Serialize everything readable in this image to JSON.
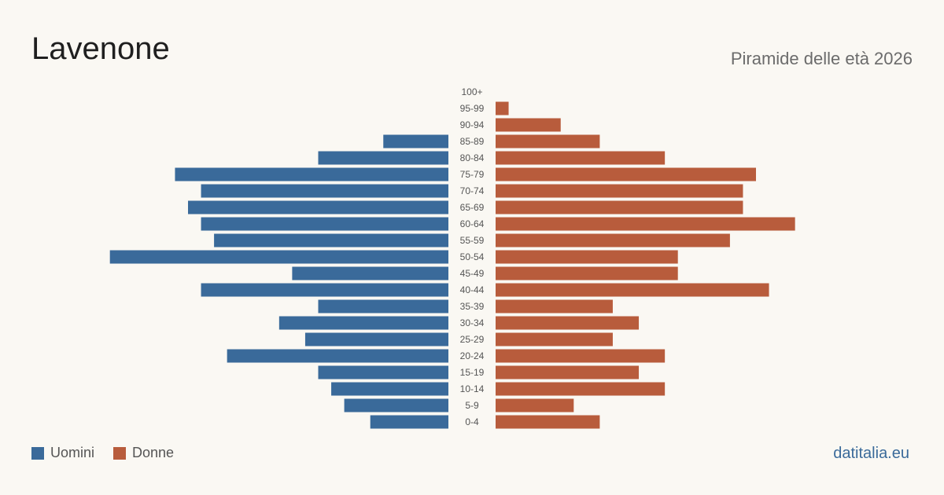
{
  "header": {
    "title": "Lavenone",
    "subtitle": "Piramide delle età 2026"
  },
  "legend": {
    "men_label": "Uomini",
    "women_label": "Donne"
  },
  "footer": {
    "source": "datitalia.eu"
  },
  "colors": {
    "men": "#3a6a9a",
    "women": "#b85c3c",
    "background": "#faf8f3"
  },
  "chart_data": {
    "type": "bar",
    "orientation": "horizontal-pyramid",
    "categories": [
      "100+",
      "95-99",
      "90-94",
      "85-89",
      "80-84",
      "75-79",
      "70-74",
      "65-69",
      "60-64",
      "55-59",
      "50-54",
      "45-49",
      "40-44",
      "35-39",
      "30-34",
      "25-29",
      "20-24",
      "15-19",
      "10-14",
      "5-9",
      "0-4"
    ],
    "series": [
      {
        "name": "Uomini",
        "values": [
          0,
          0,
          0,
          5,
          10,
          21,
          19,
          20,
          19,
          18,
          26,
          12,
          19,
          10,
          13,
          11,
          17,
          10,
          9,
          8,
          6
        ]
      },
      {
        "name": "Donne",
        "values": [
          0,
          1,
          5,
          8,
          13,
          20,
          19,
          19,
          23,
          18,
          14,
          14,
          21,
          9,
          11,
          9,
          13,
          11,
          13,
          6,
          8
        ]
      }
    ]
  }
}
